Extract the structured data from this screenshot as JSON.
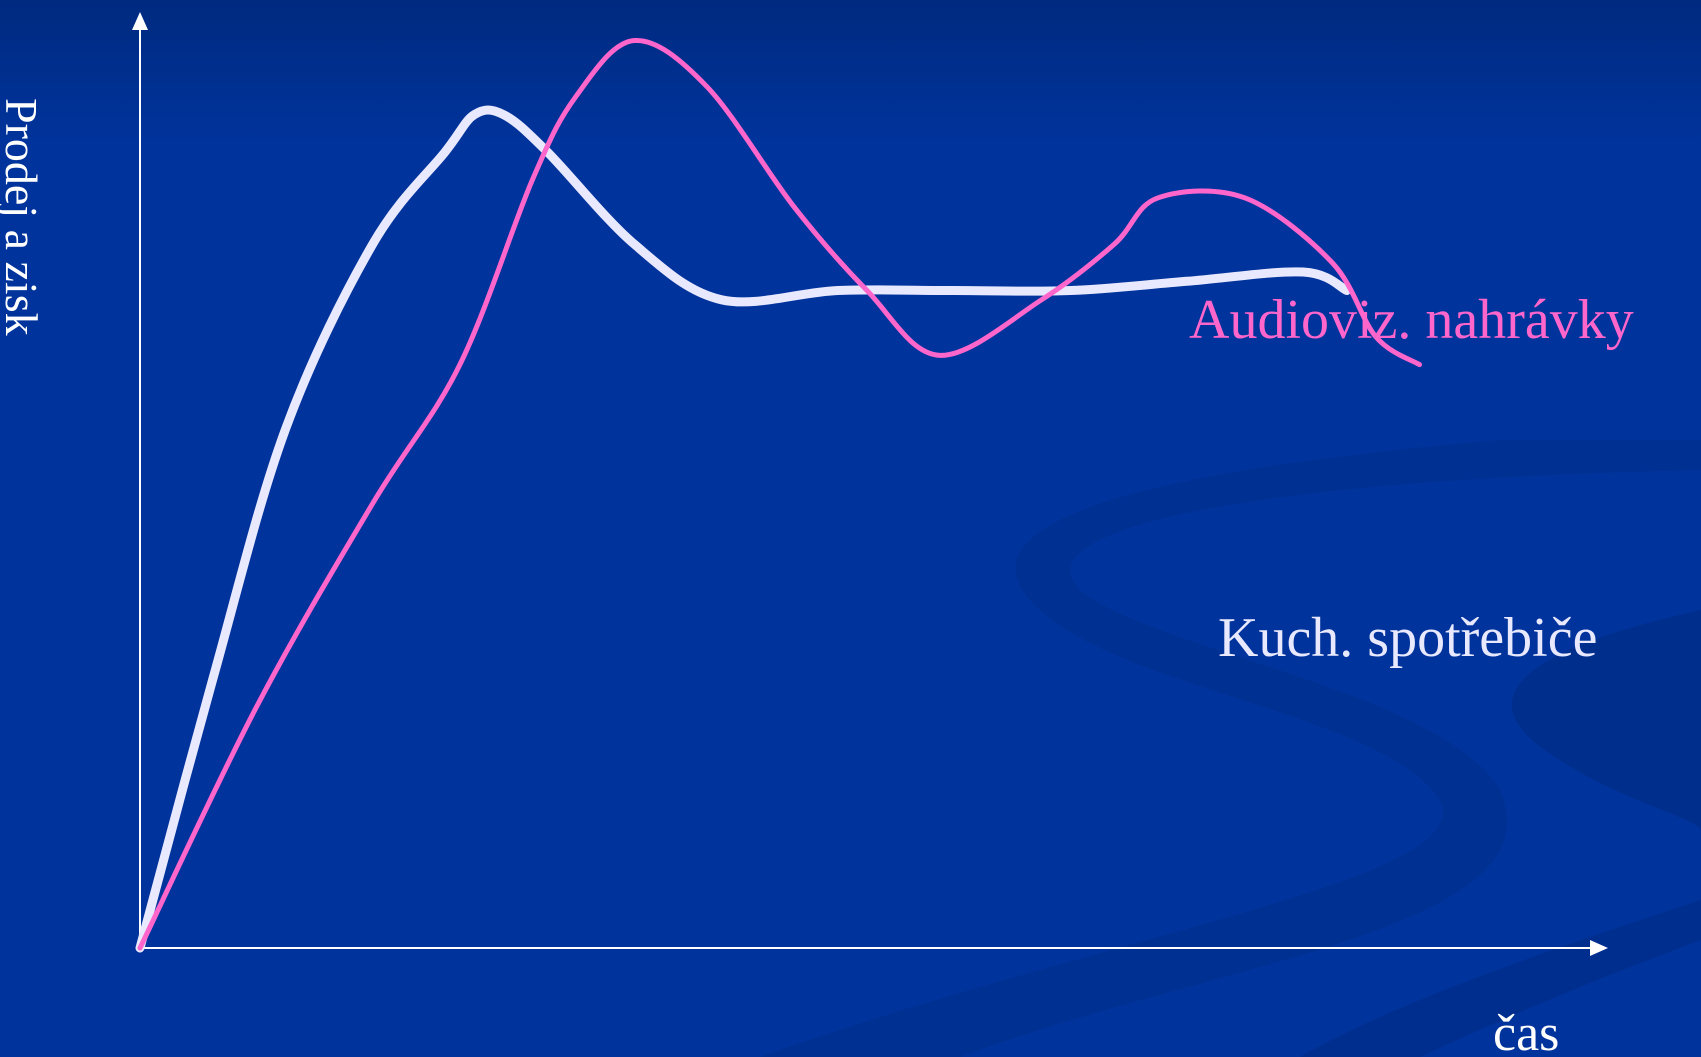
{
  "chart_data": {
    "type": "line",
    "title": "",
    "xlabel": "čas",
    "ylabel": "Prodej a zisk",
    "grid": false,
    "legend": "inline labels at right",
    "xlim": [
      0,
      100
    ],
    "ylim": [
      0,
      100
    ],
    "series": [
      {
        "name": "Audioviz. nahrávky",
        "color": "#ff66cc",
        "x": [
          0,
          8,
          16,
          22,
          27,
          30,
          34,
          39,
          45,
          50,
          55,
          62,
          67,
          70,
          76,
          82,
          85,
          88
        ],
        "y": [
          0,
          26,
          48,
          63,
          83,
          92,
          98,
          93,
          80,
          71,
          64,
          70,
          76,
          81,
          81,
          74,
          66,
          63
        ]
      },
      {
        "name": "Kuch. spotřebiče",
        "color": "#e8e8ff",
        "x": [
          0,
          5,
          10,
          16,
          21,
          23,
          25,
          28,
          34,
          40,
          48,
          56,
          64,
          72,
          80,
          83
        ],
        "y": [
          0,
          29,
          56,
          76,
          86,
          90,
          90,
          86,
          76,
          70,
          71,
          71,
          71,
          72,
          73,
          71
        ]
      }
    ]
  }
}
